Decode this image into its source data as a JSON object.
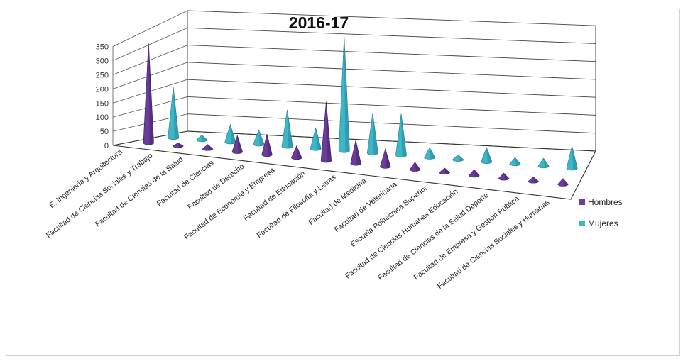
{
  "chart_data": {
    "type": "bar",
    "style": "3d-cone",
    "title": "2016-17",
    "xlabel": "",
    "ylabel": "",
    "ylim": [
      0,
      350
    ],
    "yticks": [
      0,
      50,
      100,
      150,
      200,
      250,
      300,
      350
    ],
    "grid": true,
    "legend_position": "right",
    "categories": [
      "E. Ingeniería y Arquitectura",
      "Facultad de Ciencias Sociales y Trabajo",
      "Facultad de Ciencias de la Salud",
      "Facultad de Ciencias",
      "Facultad de Derecho",
      "Facultad de Economía y Empresa",
      "Facultad de Educación",
      "Facultad de Filosofía y Letras",
      "Facultad de Medicina",
      "Facultad de Veterinaria",
      "Escuela Politécnica Superior",
      "Facultad de Ciencias Humanas Educación",
      "Facultad de Ciencias de la Salud Deporte",
      "Facultad de Empresa y Gestión Pública",
      "Facultad de Ciencias Sociales y Humanas"
    ],
    "series": [
      {
        "name": "Hombres",
        "color": "#6a3d9a",
        "values": [
          340,
          10,
          15,
          55,
          70,
          40,
          200,
          80,
          60,
          25,
          15,
          20,
          18,
          15,
          20
        ]
      },
      {
        "name": "Mujeres",
        "color": "#3fb6c8",
        "values": [
          160,
          15,
          55,
          45,
          115,
          65,
          360,
          125,
          130,
          30,
          15,
          45,
          20,
          25,
          70
        ]
      }
    ]
  }
}
